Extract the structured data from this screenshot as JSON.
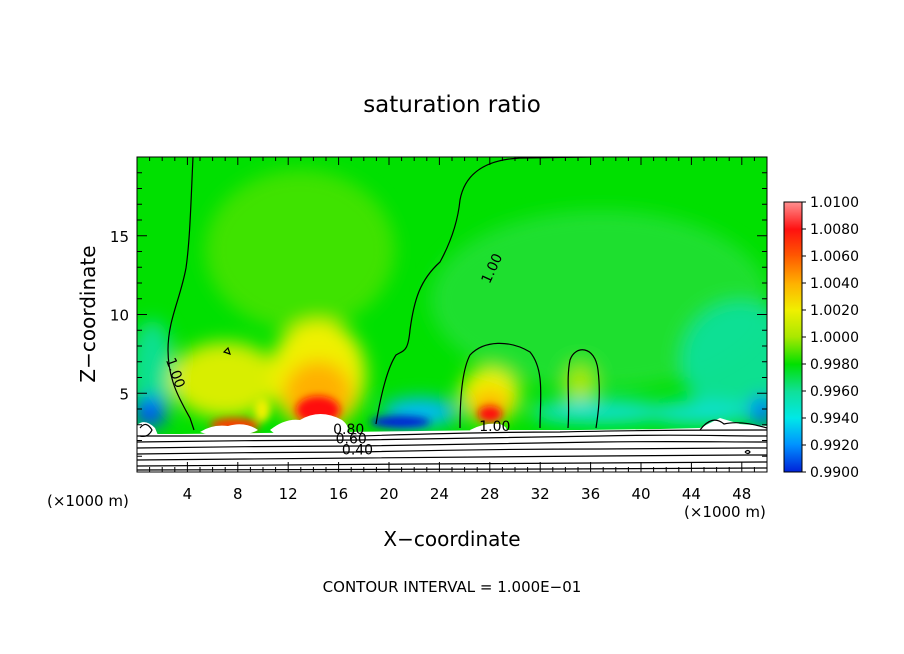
{
  "chart_data": {
    "type": "heatmap",
    "title": "saturation ratio",
    "xlabel": "X−coordinate",
    "ylabel": "Z−coordinate",
    "x_unit_left": "(×1000 m)",
    "x_unit_right": "(×1000 m)",
    "xlim": [
      0,
      50
    ],
    "ylim": [
      0,
      20
    ],
    "x_ticks": [
      4,
      8,
      12,
      16,
      20,
      24,
      28,
      32,
      36,
      40,
      44,
      48
    ],
    "y_ticks": [
      5,
      10,
      15
    ],
    "colorbar": {
      "labels": [
        "1.0100",
        "1.0080",
        "1.0060",
        "1.0040",
        "1.0020",
        "1.0000",
        "0.9980",
        "0.9960",
        "0.9940",
        "0.9920",
        "0.9900"
      ],
      "colors": [
        "#ff9090",
        "#ff1010",
        "#ff5a00",
        "#ffb000",
        "#f0f000",
        "#a8e800",
        "#00e000",
        "#10e098",
        "#00e8e8",
        "#0090ff",
        "#0020d8",
        "#7000b0"
      ]
    },
    "contour_labels": [
      {
        "text": "1.00",
        "x": 28.5,
        "y": 12.8,
        "angle": -65
      },
      {
        "text": "1.00",
        "x": 2.7,
        "y": 6.2,
        "angle": 70
      },
      {
        "text": "1.00",
        "x": 28.4,
        "y": 2.6,
        "angle": 0
      },
      {
        "text": "0.80",
        "x": 16.8,
        "y": 2.4,
        "angle": 0
      },
      {
        "text": "0.60",
        "x": 17.0,
        "y": 1.8,
        "angle": 0
      },
      {
        "text": "0.40",
        "x": 17.5,
        "y": 1.1,
        "angle": 0
      }
    ],
    "footnote": "CONTOUR INTERVAL = 1.000E−01"
  }
}
